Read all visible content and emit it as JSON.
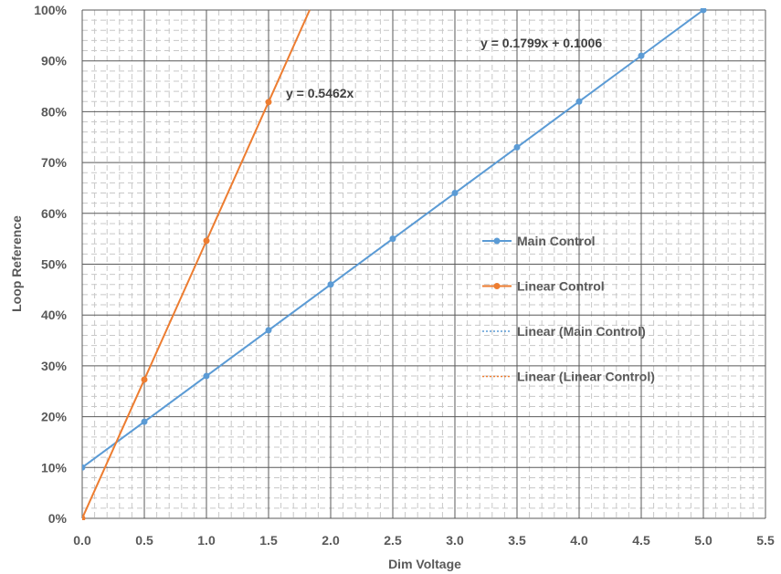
{
  "chart_data": {
    "type": "scatter",
    "xlabel": "Dim Voltage",
    "ylabel": "Loop Reference",
    "xlim": [
      0,
      5.5
    ],
    "ylim": [
      0,
      1.0
    ],
    "x_ticks": [
      "0.0",
      "0.5",
      "1.0",
      "1.5",
      "2.0",
      "2.5",
      "3.0",
      "3.5",
      "4.0",
      "4.5",
      "5.0",
      "5.5"
    ],
    "y_ticks": [
      "0%",
      "10%",
      "20%",
      "30%",
      "40%",
      "50%",
      "60%",
      "70%",
      "80%",
      "90%",
      "100%"
    ],
    "grid": "major solid, minor dashed",
    "legend_position": "right",
    "series": [
      {
        "name": "Main Control",
        "color": "#5B9BD5",
        "x": [
          0,
          0.5,
          1.0,
          1.5,
          2.0,
          2.5,
          3.0,
          3.5,
          4.0,
          4.5,
          5.0
        ],
        "y": [
          0.1,
          0.19,
          0.28,
          0.37,
          0.46,
          0.55,
          0.64,
          0.73,
          0.82,
          0.91,
          1.0
        ]
      },
      {
        "name": "Linear Control",
        "color": "#ED7D31",
        "x": [
          0,
          0.5,
          1.0,
          1.5
        ],
        "y": [
          0.0,
          0.273,
          0.546,
          0.819
        ]
      }
    ],
    "trendlines": [
      {
        "name": "Linear (Main Control)",
        "color": "#5B9BD5",
        "slope": 0.1799,
        "intercept": 0.1006,
        "equation": "y = 0.1799x + 0.1006"
      },
      {
        "name": "Linear (Linear Control)",
        "color": "#ED7D31",
        "slope": 0.5462,
        "intercept": 0,
        "equation": "y = 0.5462x"
      }
    ]
  }
}
